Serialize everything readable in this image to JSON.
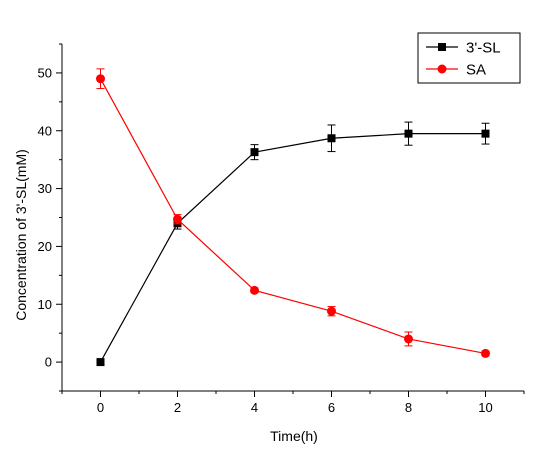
{
  "chart_data": {
    "type": "line",
    "title": "",
    "xlabel": "Time(h)",
    "ylabel": "Concentration of 3'-SL(mM)",
    "xlim": [
      -1,
      11
    ],
    "ylim": [
      -5,
      55
    ],
    "xticks": [
      0,
      2,
      4,
      6,
      8,
      10
    ],
    "yticks": [
      0,
      10,
      20,
      30,
      40,
      50
    ],
    "x": [
      0,
      2,
      4,
      6,
      8,
      10
    ],
    "grid": false,
    "legend_position": "top-right",
    "series": [
      {
        "name": "3'-SL",
        "color": "#000000",
        "marker": "square",
        "values": [
          0,
          24.0,
          36.3,
          38.7,
          39.5,
          39.5
        ],
        "errors": [
          0,
          1.0,
          1.3,
          2.3,
          2.0,
          1.8
        ]
      },
      {
        "name": "SA",
        "color": "#ff0000",
        "marker": "circle",
        "values": [
          49.0,
          24.7,
          12.4,
          8.8,
          4.0,
          1.5
        ],
        "errors": [
          1.7,
          0.8,
          0.4,
          0.8,
          1.2,
          0.4
        ]
      }
    ]
  }
}
